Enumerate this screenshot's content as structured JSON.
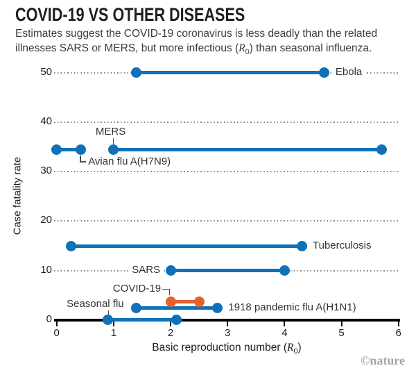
{
  "header": {
    "title": "COVID-19 VS OTHER DISEASES",
    "subtitle": {
      "pre": "Estimates suggest the COVID-19 coronavirus is less deadly than the related illnesses SARS or MERS, but more infectious (",
      "r": "R",
      "sub": "0",
      "post": ") than seasonal influenza."
    }
  },
  "chart_data": {
    "type": "dumbbell-range",
    "title": "COVID-19 VS OTHER DISEASES",
    "xlabel": "Basic reproduction number (R0)",
    "ylabel": "Case fatality rate",
    "xlabel_parts": {
      "pre": "Basic reproduction number (",
      "r": "R",
      "sub": "0",
      "post": ")"
    },
    "xlim": [
      0,
      6
    ],
    "ylim": [
      0,
      55
    ],
    "x_ticks": [
      0,
      1,
      2,
      3,
      4,
      5,
      6
    ],
    "y_ticks": [
      0,
      10,
      20,
      30,
      40,
      50
    ],
    "grid": "horizontal-dotted",
    "legend": "none",
    "series": [
      {
        "name": "Ebola",
        "r0_range": [
          1.4,
          4.7
        ],
        "cfr": 50,
        "color": "#0f72b9",
        "label_side": "right"
      },
      {
        "name": "MERS",
        "r0_range": [
          1.0,
          5.7
        ],
        "cfr": 34.4,
        "color": "#0f72b9",
        "label_side": "above-left"
      },
      {
        "name": "Avian flu A(H7N9)",
        "r0_range": [
          0.0,
          0.42
        ],
        "cfr": 34.4,
        "color": "#0f72b9",
        "label_side": "elbow-below"
      },
      {
        "name": "Tuberculosis",
        "r0_range": [
          0.25,
          4.3
        ],
        "cfr": 15,
        "color": "#0f72b9",
        "label_side": "right"
      },
      {
        "name": "SARS",
        "r0_range": [
          2.0,
          4.0
        ],
        "cfr": 10,
        "color": "#0f72b9",
        "label_side": "left"
      },
      {
        "name": "COVID-19",
        "r0_range": [
          2.0,
          2.5
        ],
        "cfr": 3.7,
        "color": "#e7612d",
        "label_side": "elbow-above"
      },
      {
        "name": "1918 pandemic flu A(H1N1)",
        "r0_range": [
          1.4,
          2.82
        ],
        "cfr": 2.5,
        "color": "#0f72b9",
        "label_side": "right"
      },
      {
        "name": "Seasonal flu",
        "r0_range": [
          0.9,
          2.1
        ],
        "cfr": 0,
        "color": "#0f72b9",
        "label_side": "above-leader"
      }
    ]
  },
  "footer": {
    "credit": "©nature"
  },
  "colors": {
    "blue": "#0f72b9",
    "orange": "#e7612d",
    "grid": "#848484",
    "axis": "#000000",
    "text": "#3c3c3c",
    "credit": "#a6a6a6"
  }
}
